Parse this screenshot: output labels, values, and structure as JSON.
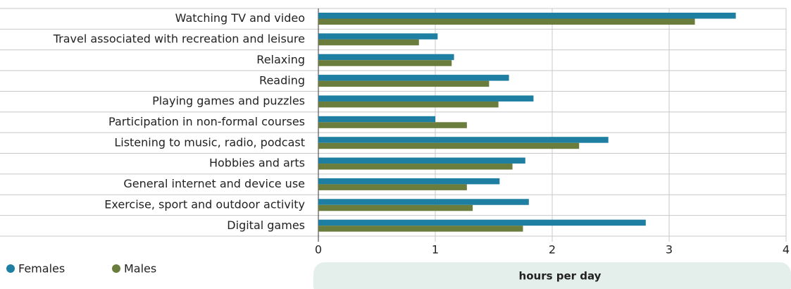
{
  "chart_data": {
    "type": "hbar",
    "categories": [
      "Watching TV and video",
      "Travel associated with recreation and leisure",
      "Relaxing",
      "Reading",
      "Playing games and puzzles",
      "Participation in non-formal courses",
      "Listening to music, radio, podcast",
      "Hobbies and arts",
      "General internet and device use",
      "Exercise, sport and outdoor activity",
      "Digital games"
    ],
    "series": [
      {
        "name": "Females",
        "color": "#1f7fa3",
        "values": [
          3.57,
          1.02,
          1.16,
          1.63,
          1.84,
          1.0,
          2.48,
          1.77,
          1.55,
          1.8,
          2.8
        ]
      },
      {
        "name": "Males",
        "color": "#6b7d3c",
        "values": [
          3.22,
          0.86,
          1.14,
          1.46,
          1.54,
          1.27,
          2.23,
          1.66,
          1.27,
          1.32,
          1.75
        ]
      }
    ],
    "xlabel": "hours per day",
    "xlim": [
      0,
      4
    ],
    "xticks": [
      0,
      1,
      2,
      3,
      4
    ],
    "grid": true
  }
}
